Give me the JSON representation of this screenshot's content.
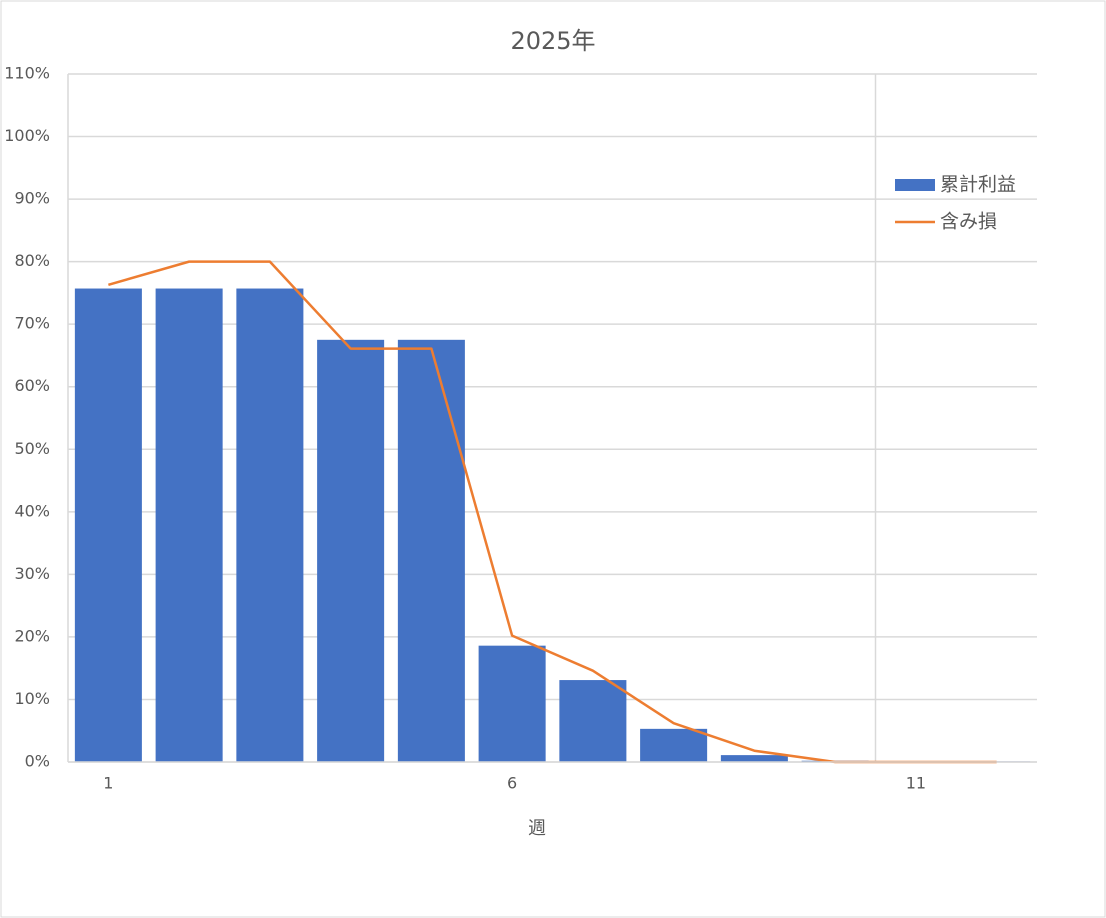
{
  "chart_data": {
    "type": "bar-line",
    "title": "2025年",
    "x_label": "週",
    "categories": [
      "1",
      null,
      null,
      null,
      null,
      "6",
      null,
      null,
      null,
      null,
      "11",
      null
    ],
    "series": [
      {
        "name": "累計利益",
        "type": "bar",
        "color": "#4472c4",
        "values": [
          75.7,
          75.7,
          75.7,
          67.5,
          67.5,
          18.6,
          13.1,
          5.3,
          1.1,
          0.2,
          0.1,
          0.1
        ]
      },
      {
        "name": "含み損",
        "type": "line",
        "color": "#ed7d31",
        "values": [
          76.3,
          80,
          80,
          66.1,
          66.1,
          20.2,
          14.6,
          6.2,
          1.8,
          0,
          0,
          0
        ]
      }
    ],
    "ylim": [
      0,
      110
    ],
    "yticks": [
      {
        "value": 0,
        "label": "0%"
      },
      {
        "value": 10,
        "label": "10%"
      },
      {
        "value": 20,
        "label": "20%"
      },
      {
        "value": 30,
        "label": "30%"
      },
      {
        "value": 40,
        "label": "40%"
      },
      {
        "value": 50,
        "label": "50%"
      },
      {
        "value": 60,
        "label": "60%"
      },
      {
        "value": 70,
        "label": "70%"
      },
      {
        "value": 80,
        "label": "80%"
      },
      {
        "value": 90,
        "label": "90%"
      },
      {
        "value": 100,
        "label": "100%"
      },
      {
        "value": 110,
        "label": "110%"
      }
    ],
    "grid": true,
    "legend": "right"
  }
}
